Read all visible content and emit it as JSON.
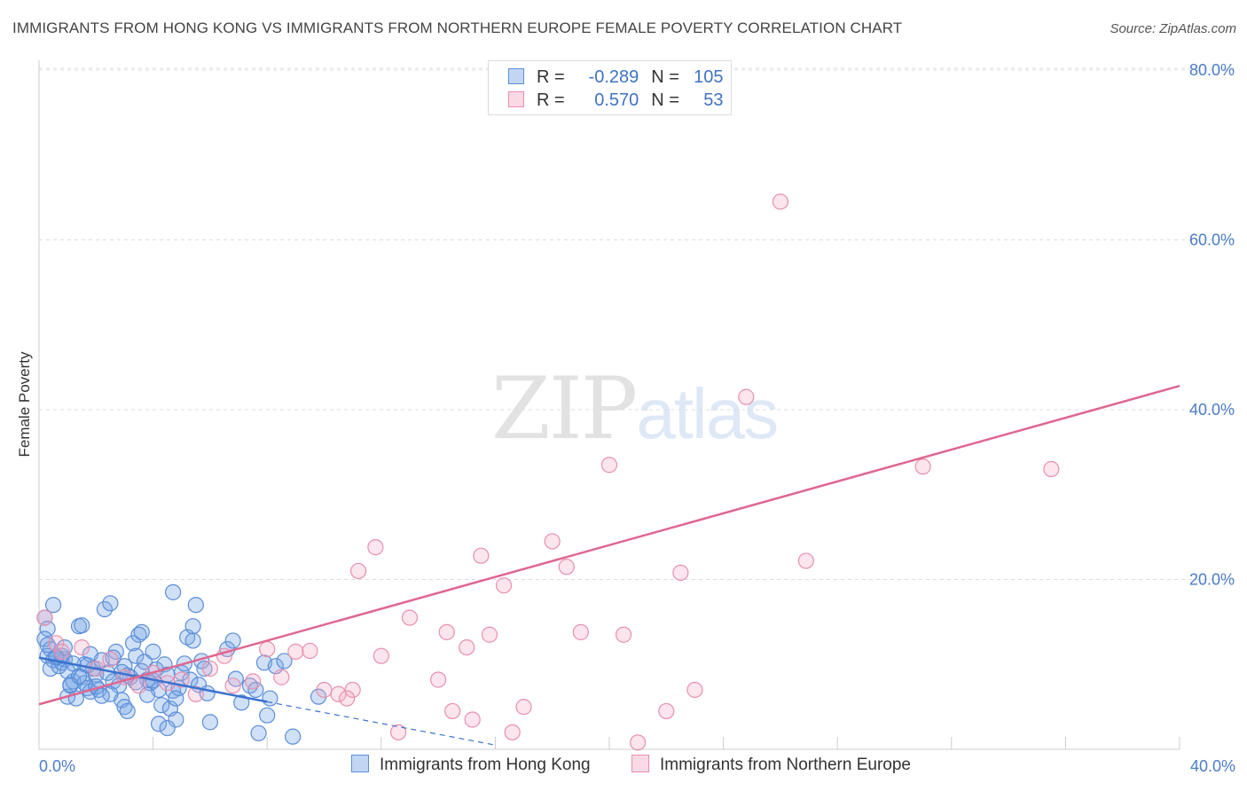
{
  "title": "IMMIGRANTS FROM HONG KONG VS IMMIGRANTS FROM NORTHERN EUROPE FEMALE POVERTY CORRELATION CHART",
  "source": "Source: ZipAtlas.com",
  "watermark": {
    "zip": "ZIP",
    "atlas": "atlas"
  },
  "legend": {
    "rows": [
      {
        "r_label": "R =",
        "r_value": "-0.289",
        "n_label": "N =",
        "n_value": "105"
      },
      {
        "r_label": "R =",
        "r_value": "0.570",
        "n_label": "N =",
        "n_value": "53"
      }
    ]
  },
  "colors": {
    "blue_fill": "rgba(120,165,230,0.35)",
    "blue_stroke": "#5b8ed8",
    "blue_line": "#3a72d0",
    "pink_fill": "rgba(245,170,195,0.30)",
    "pink_stroke": "#e88fae",
    "pink_line": "#e06690",
    "grid": "#dddddd",
    "tick_text": "#4a7cc9"
  },
  "chart_data": {
    "type": "scatter",
    "title": "IMMIGRANTS FROM HONG KONG VS IMMIGRANTS FROM NORTHERN EUROPE FEMALE POVERTY CORRELATION CHART",
    "xlabel": "",
    "ylabel": "Female Poverty",
    "xlim": [
      0,
      40
    ],
    "ylim": [
      0,
      80
    ],
    "x_tick_labels": [
      "0.0%",
      "40.0%"
    ],
    "y_ticks": [
      20,
      40,
      60,
      80
    ],
    "y_tick_labels": [
      "20.0%",
      "40.0%",
      "60.0%",
      "80.0%"
    ],
    "grid": true,
    "legend_position": "bottom",
    "series": [
      {
        "name": "Immigrants from Hong Kong",
        "color": "blue",
        "trend": {
          "x0": 0,
          "y0": 10.8,
          "x1": 8.0,
          "y1": 5.6,
          "dashed_to_x": 16,
          "dashed_to_y": 0.5
        },
        "points": [
          [
            0.2,
            15.5
          ],
          [
            0.3,
            14.2
          ],
          [
            0.2,
            13.0
          ],
          [
            0.4,
            11.8
          ],
          [
            0.3,
            11.0
          ],
          [
            0.5,
            10.5
          ],
          [
            0.6,
            10.8
          ],
          [
            0.4,
            9.5
          ],
          [
            0.7,
            9.8
          ],
          [
            0.8,
            10.2
          ],
          [
            0.5,
            17.0
          ],
          [
            0.9,
            10.6
          ],
          [
            1.0,
            9.2
          ],
          [
            1.1,
            7.5
          ],
          [
            1.2,
            8.0
          ],
          [
            1.0,
            6.2
          ],
          [
            1.3,
            6.0
          ],
          [
            0.8,
            11.0
          ],
          [
            0.9,
            12.0
          ],
          [
            1.5,
            8.5
          ],
          [
            1.4,
            14.5
          ],
          [
            1.5,
            14.6
          ],
          [
            1.6,
            7.8
          ],
          [
            1.7,
            7.2
          ],
          [
            1.8,
            11.2
          ],
          [
            1.9,
            9.5
          ],
          [
            2.0,
            8.8
          ],
          [
            1.8,
            6.8
          ],
          [
            2.1,
            7.0
          ],
          [
            1.6,
            10.0
          ],
          [
            2.3,
            16.5
          ],
          [
            2.5,
            17.2
          ],
          [
            2.2,
            10.5
          ],
          [
            2.4,
            9.0
          ],
          [
            2.6,
            8.0
          ],
          [
            2.7,
            11.5
          ],
          [
            2.8,
            7.5
          ],
          [
            2.9,
            5.8
          ],
          [
            2.5,
            6.5
          ],
          [
            3.0,
            9.8
          ],
          [
            3.0,
            5.0
          ],
          [
            3.1,
            4.5
          ],
          [
            3.2,
            8.5
          ],
          [
            3.3,
            12.5
          ],
          [
            3.4,
            11.0
          ],
          [
            3.5,
            13.5
          ],
          [
            3.6,
            9.2
          ],
          [
            3.7,
            10.3
          ],
          [
            3.8,
            8.2
          ],
          [
            3.9,
            7.8
          ],
          [
            3.6,
            13.8
          ],
          [
            4.0,
            11.5
          ],
          [
            4.1,
            9.4
          ],
          [
            4.2,
            7.0
          ],
          [
            4.3,
            5.2
          ],
          [
            4.4,
            10.0
          ],
          [
            4.5,
            8.8
          ],
          [
            4.6,
            4.8
          ],
          [
            4.7,
            6.9
          ],
          [
            4.8,
            3.5
          ],
          [
            4.9,
            7.2
          ],
          [
            5.0,
            9.0
          ],
          [
            4.8,
            6.0
          ],
          [
            5.1,
            10.1
          ],
          [
            5.2,
            13.2
          ],
          [
            5.3,
            8.2
          ],
          [
            5.4,
            12.8
          ],
          [
            5.5,
            17.0
          ],
          [
            5.6,
            7.6
          ],
          [
            5.7,
            10.4
          ],
          [
            4.7,
            18.5
          ],
          [
            5.4,
            14.5
          ],
          [
            5.8,
            9.5
          ],
          [
            5.9,
            6.6
          ],
          [
            6.0,
            3.2
          ],
          [
            4.2,
            3.0
          ],
          [
            4.5,
            2.5
          ],
          [
            6.6,
            11.8
          ],
          [
            6.8,
            12.8
          ],
          [
            6.9,
            8.3
          ],
          [
            7.1,
            5.5
          ],
          [
            7.4,
            7.5
          ],
          [
            7.6,
            7.0
          ],
          [
            7.7,
            1.9
          ],
          [
            7.9,
            10.2
          ],
          [
            8.0,
            4.0
          ],
          [
            8.1,
            6.0
          ],
          [
            8.3,
            9.8
          ],
          [
            8.6,
            10.4
          ],
          [
            8.9,
            1.5
          ],
          [
            9.8,
            6.2
          ],
          [
            0.6,
            10.9
          ],
          [
            1.2,
            10.1
          ],
          [
            2.0,
            7.4
          ],
          [
            1.1,
            7.6
          ],
          [
            2.9,
            9.1
          ],
          [
            3.4,
            7.9
          ],
          [
            0.3,
            12.3
          ],
          [
            1.7,
            9.9
          ],
          [
            3.1,
            8.7
          ],
          [
            2.2,
            6.3
          ],
          [
            4.0,
            8.1
          ],
          [
            1.4,
            8.6
          ],
          [
            2.6,
            10.8
          ],
          [
            3.8,
            6.4
          ]
        ]
      },
      {
        "name": "Immigrants from Northern Europe",
        "color": "pink",
        "trend": {
          "x0": 0,
          "y0": 5.3,
          "x1": 40,
          "y1": 42.8
        },
        "points": [
          [
            0.2,
            15.5
          ],
          [
            0.6,
            12.5
          ],
          [
            0.8,
            11.5
          ],
          [
            1.5,
            12.0
          ],
          [
            2.0,
            9.5
          ],
          [
            2.5,
            10.6
          ],
          [
            3.0,
            8.5
          ],
          [
            3.5,
            7.5
          ],
          [
            4.0,
            9.0
          ],
          [
            4.5,
            7.8
          ],
          [
            5.0,
            8.2
          ],
          [
            5.5,
            6.5
          ],
          [
            6.0,
            9.5
          ],
          [
            6.5,
            11.0
          ],
          [
            6.8,
            7.5
          ],
          [
            7.5,
            8.0
          ],
          [
            8.0,
            11.8
          ],
          [
            8.5,
            8.5
          ],
          [
            9.0,
            11.5
          ],
          [
            9.5,
            11.6
          ],
          [
            10.0,
            7.0
          ],
          [
            11.0,
            7.0
          ],
          [
            10.5,
            6.5
          ],
          [
            10.8,
            6.0
          ],
          [
            11.2,
            21.0
          ],
          [
            11.8,
            23.8
          ],
          [
            12.0,
            11.0
          ],
          [
            12.6,
            2.0
          ],
          [
            13.0,
            15.5
          ],
          [
            14.0,
            8.2
          ],
          [
            14.3,
            13.8
          ],
          [
            14.5,
            4.5
          ],
          [
            15.0,
            12.0
          ],
          [
            15.2,
            3.5
          ],
          [
            15.5,
            22.8
          ],
          [
            15.8,
            13.5
          ],
          [
            16.3,
            19.3
          ],
          [
            16.6,
            2.0
          ],
          [
            17.0,
            5.0
          ],
          [
            18.0,
            24.5
          ],
          [
            18.5,
            21.5
          ],
          [
            19.0,
            13.8
          ],
          [
            20.0,
            33.5
          ],
          [
            20.5,
            13.5
          ],
          [
            21.0,
            0.8
          ],
          [
            22.0,
            4.5
          ],
          [
            22.5,
            20.8
          ],
          [
            23.0,
            7.0
          ],
          [
            24.8,
            41.5
          ],
          [
            26.0,
            64.5
          ],
          [
            26.9,
            22.2
          ],
          [
            31.0,
            33.3
          ],
          [
            35.5,
            33.0
          ]
        ]
      }
    ]
  },
  "bottom_legend": {
    "items": [
      {
        "label": "Immigrants from Hong Kong"
      },
      {
        "label": "Immigrants from Northern Europe"
      }
    ]
  }
}
